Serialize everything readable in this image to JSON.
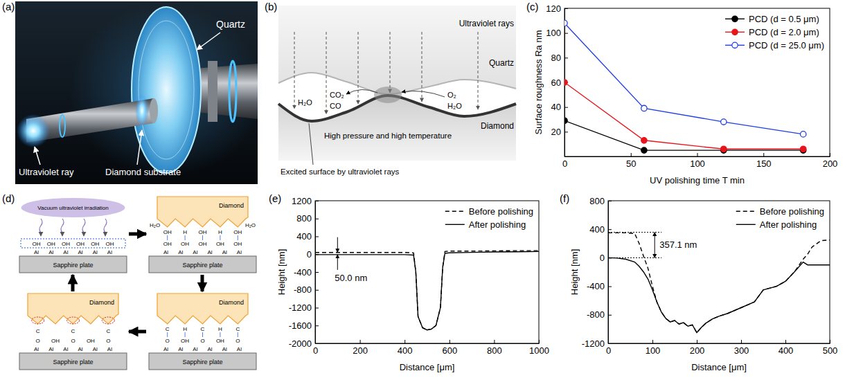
{
  "panel_letters": {
    "a": "(a)",
    "b": "(b)",
    "c": "(c)",
    "d": "(d)",
    "e": "(e)",
    "f": "(f)"
  },
  "panel_a": {
    "quartz": "Quartz",
    "ultraviolet_ray": "Ultraviolet ray",
    "diamond_substrate": "Diamond substrate"
  },
  "panel_b": {
    "rays": "Ultraviolet rays",
    "quartz": "Quartz",
    "diamond": "Diamond",
    "products": [
      "H₂O",
      "CO₂",
      "CO"
    ],
    "reactants": [
      "O₂",
      "H₂O"
    ],
    "contact": "High pressure and high temperature",
    "excited": "Excited surface by ultraviolet rays"
  },
  "panel_d": {
    "steps": [
      {
        "source": "Vacuum ultraviolet irradiation",
        "surface": [
          "OH",
          "OH",
          "OH",
          "OH",
          "OH",
          "OH"
        ],
        "atoms": [
          "Al",
          "Al",
          "Al",
          "Al",
          "Al",
          "Al"
        ],
        "plate": "Sapphire plate"
      },
      {
        "diamond": "Diamond",
        "released": [
          "H₂O",
          "H₂O"
        ],
        "upper": [
          "OH",
          "H",
          "OH",
          "H",
          "OH"
        ],
        "surface": [
          "OH",
          "OH",
          "OH",
          "OH",
          "OH"
        ],
        "atoms": [
          "Al",
          "Al",
          "Al",
          "Al",
          "Al",
          "Al"
        ],
        "plate": "Sapphire plate"
      },
      {
        "diamond": "Diamond",
        "upper": [
          "C",
          "H",
          "C",
          "H",
          "C"
        ],
        "surface": [
          "O",
          "OH",
          "O",
          "OH",
          "O"
        ],
        "atoms": [
          "Al",
          "Al",
          "Al",
          "Al",
          "Al",
          "Al"
        ],
        "plate": "Sapphire plate"
      },
      {
        "diamond": "Diamond",
        "removed": [
          "C",
          "C",
          "C"
        ],
        "surface": [
          "O",
          "OH",
          "O",
          "OH",
          "O"
        ],
        "atoms": [
          "Al",
          "Al",
          "Al",
          "Al",
          "Al",
          "Al"
        ],
        "plate": "Sapphire plate"
      }
    ]
  },
  "chart_data": [
    {
      "type": "line",
      "x_label": "UV polishing time T min",
      "y_label": "Surface roughness Ra nm",
      "x": [
        0,
        60,
        120,
        180
      ],
      "xlim": [
        0,
        200
      ],
      "xticks": [
        0,
        50,
        100,
        150,
        200
      ],
      "ylim": [
        0,
        120
      ],
      "yticks": [
        20,
        40,
        60,
        80,
        100,
        120
      ],
      "grid": false,
      "legend": "upper right",
      "series": [
        {
          "name": "PCD (d = 0.5 μm)",
          "color": "#000000",
          "marker": "circle",
          "line_style": "solid",
          "values": [
            29,
            5,
            5,
            5
          ]
        },
        {
          "name": "PCD (d = 2.0 μm)",
          "color": "#e8141c",
          "marker": "circle",
          "line_style": "solid",
          "values": [
            60,
            13,
            6,
            6
          ]
        },
        {
          "name": "PCD (d = 25.0 μm)",
          "color": "#1f3fe0",
          "marker": "open-circle",
          "line_style": "solid",
          "values": [
            108,
            39,
            28,
            18
          ]
        }
      ]
    },
    {
      "type": "line",
      "x_label": "Distance [μm]",
      "y_label": "Height [nm]",
      "x": [
        0,
        100,
        200,
        300,
        400,
        440,
        450,
        460,
        480,
        500,
        520,
        540,
        560,
        570,
        580,
        600,
        700,
        800,
        900,
        1000
      ],
      "xlim": [
        0,
        1000
      ],
      "xticks": [
        0,
        200,
        400,
        600,
        800,
        1000
      ],
      "ylim": [
        -2000,
        1200
      ],
      "yticks": [
        -2000,
        -1600,
        -1200,
        -800,
        -400,
        0,
        400,
        800,
        1200
      ],
      "grid": false,
      "legend": "upper right",
      "series": [
        {
          "name": "Before polishing",
          "color": "#000000",
          "line_style": "dashed",
          "values": [
            40,
            40,
            40,
            40,
            40,
            30,
            -400,
            -1400,
            -1650,
            -1700,
            -1680,
            -1600,
            -1200,
            -300,
            60,
            70,
            70,
            75,
            80,
            80
          ]
        },
        {
          "name": "After polishing",
          "color": "#000000",
          "line_style": "solid",
          "values": [
            -10,
            -10,
            -10,
            -10,
            -10,
            -20,
            -400,
            -1400,
            -1650,
            -1700,
            -1680,
            -1600,
            -1200,
            -300,
            20,
            30,
            40,
            50,
            55,
            60
          ]
        }
      ],
      "annotations": [
        {
          "text": "50.0 nm",
          "x": 100,
          "y_from": -10,
          "y_to": 40
        }
      ]
    },
    {
      "type": "line",
      "x_label": "Distance [μm]",
      "y_label": "Height [nm]",
      "x": [
        0,
        20,
        40,
        60,
        70,
        80,
        90,
        100,
        110,
        120,
        130,
        140,
        150,
        160,
        170,
        180,
        190,
        200,
        210,
        220,
        235,
        250,
        270,
        300,
        330,
        350,
        380,
        400,
        420,
        440,
        450,
        460,
        480,
        500
      ],
      "xlim": [
        0,
        500
      ],
      "xticks": [
        0,
        100,
        200,
        300,
        400,
        500
      ],
      "ylim": [
        -1200,
        800
      ],
      "yticks": [
        -1200,
        -800,
        -400,
        0,
        400,
        800
      ],
      "grid": false,
      "legend": "upper right",
      "series": [
        {
          "name": "Before polishing",
          "color": "#000000",
          "line_style": "dashed",
          "values": [
            350,
            350,
            350,
            340,
            200,
            20,
            -150,
            -400,
            -620,
            -760,
            -850,
            -900,
            -880,
            -930,
            -910,
            -960,
            -940,
            -1050,
            -980,
            -920,
            -860,
            -820,
            -780,
            -700,
            -620,
            -450,
            -400,
            -330,
            -200,
            -20,
            50,
            150,
            240,
            250
          ]
        },
        {
          "name": "After polishing",
          "color": "#000000",
          "line_style": "solid",
          "values": [
            0,
            -5,
            -20,
            -60,
            -120,
            -200,
            -300,
            -450,
            -620,
            -760,
            -850,
            -900,
            -880,
            -930,
            -910,
            -960,
            -940,
            -1050,
            -980,
            -920,
            -860,
            -820,
            -780,
            -700,
            -620,
            -450,
            -400,
            -330,
            -200,
            -60,
            -100,
            -100,
            -100,
            -100
          ]
        }
      ],
      "annotations": [
        {
          "text": "357.1 nm",
          "x": 105,
          "y_from": 0,
          "y_to": 357.1
        }
      ]
    }
  ]
}
